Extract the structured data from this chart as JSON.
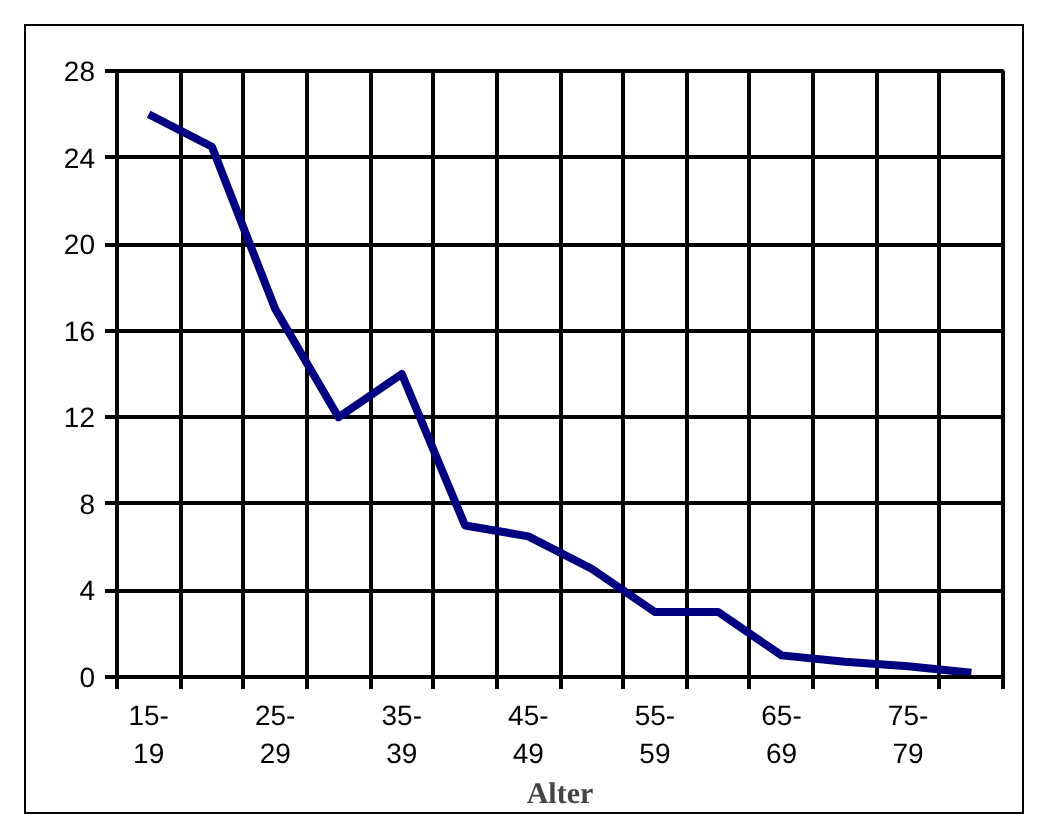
{
  "chart_data": {
    "type": "line",
    "xlabel": "Alter",
    "categories": [
      "15-19",
      null,
      "25-29",
      null,
      "35-39",
      null,
      "45-49",
      null,
      "55-59",
      null,
      "65-69",
      null,
      "75-79",
      null
    ],
    "series": [
      {
        "color": "#000080",
        "values": [
          26,
          24.5,
          17,
          12,
          14,
          7,
          6.5,
          5,
          3,
          3,
          1,
          0.7,
          0.5,
          0.2
        ]
      }
    ],
    "ylim": [
      0,
      28
    ],
    "yticks": [
      0,
      4,
      8,
      12,
      16,
      20,
      24,
      28
    ],
    "grid": true,
    "marker": "none",
    "line_style": "solid"
  }
}
